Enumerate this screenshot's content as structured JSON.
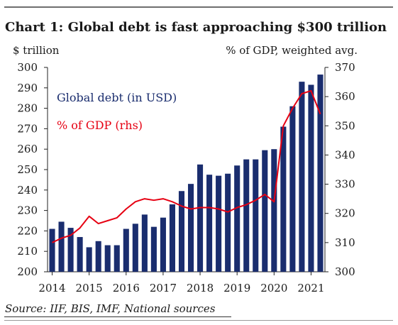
{
  "title": "Chart 1: Global debt is fast approaching $300 trillion",
  "source": "Source: IIF, BIS, IMF, National sources",
  "colors": {
    "bar": "#1a2d6e",
    "line": "#e60012",
    "axis": "#222222"
  },
  "chart_data": {
    "type": "bar",
    "title": "Chart 1: Global debt is fast approaching $300 trillion",
    "ylabel": "$ trillion",
    "ylabel_right": "% of GDP, weighted avg.",
    "ylim": [
      200,
      300
    ],
    "ylim_right": [
      300,
      370
    ],
    "y_ticks": [
      "200",
      "210",
      "220",
      "230",
      "240",
      "250",
      "260",
      "270",
      "280",
      "290",
      "300"
    ],
    "y_ticks_right": [
      "300",
      "310",
      "320",
      "330",
      "340",
      "350",
      "360",
      "370"
    ],
    "x_ticks": [
      "2014",
      "2015",
      "2016",
      "2017",
      "2018",
      "2019",
      "2020",
      "2021"
    ],
    "grid": false,
    "categories": [
      "2014Q1",
      "2014Q2",
      "2014Q3",
      "2014Q4",
      "2015Q1",
      "2015Q2",
      "2015Q3",
      "2015Q4",
      "2016Q1",
      "2016Q2",
      "2016Q3",
      "2016Q4",
      "2017Q1",
      "2017Q2",
      "2017Q3",
      "2017Q4",
      "2018Q1",
      "2018Q2",
      "2018Q3",
      "2018Q4",
      "2019Q1",
      "2019Q2",
      "2019Q3",
      "2019Q4",
      "2020Q1",
      "2020Q2",
      "2020Q3",
      "2020Q4",
      "2021Q1",
      "2021Q2"
    ],
    "series": [
      {
        "name": "Global debt (in USD)",
        "axis": "left",
        "kind": "bar",
        "values": [
          221,
          224.5,
          221.5,
          217,
          212,
          215,
          213,
          213,
          221,
          223.5,
          228,
          222,
          226.5,
          233,
          239.5,
          243,
          252.5,
          247.5,
          247,
          248,
          252,
          255,
          255,
          259.5,
          260,
          271,
          281,
          293,
          291.5,
          296.5
        ]
      },
      {
        "name": "% of GDP (rhs)",
        "axis": "right",
        "kind": "line",
        "values": [
          310,
          311.5,
          312.5,
          315,
          319,
          316.5,
          317.5,
          318.5,
          321.5,
          324,
          325,
          324.5,
          325,
          324,
          322.5,
          321.5,
          322,
          322,
          321.5,
          320.5,
          322,
          323,
          324.5,
          326.5,
          324,
          350,
          356,
          361,
          362,
          354
        ]
      }
    ]
  }
}
